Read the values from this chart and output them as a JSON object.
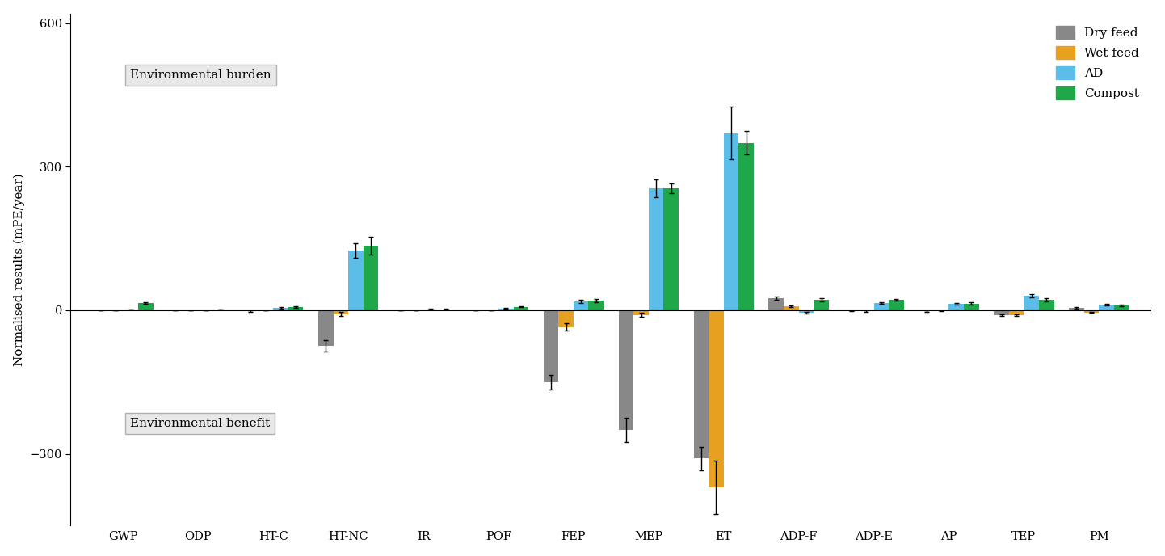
{
  "categories": [
    "GWP",
    "ODP",
    "HT-C",
    "HT-NC",
    "IR",
    "POF",
    "FEP",
    "MEP",
    "ET",
    "ADP-F",
    "ADP-E",
    "AP",
    "TEP",
    "PM"
  ],
  "series": {
    "Dry feed": [
      0,
      0,
      -2,
      -75,
      0,
      0,
      -150,
      -250,
      -310,
      25,
      -1,
      -2,
      -10,
      5
    ],
    "Wet feed": [
      0,
      0,
      0,
      -8,
      0,
      0,
      -35,
      -10,
      -370,
      8,
      -2,
      -1,
      -10,
      -5
    ],
    "AD": [
      1,
      0,
      5,
      125,
      2,
      4,
      18,
      255,
      370,
      -5,
      15,
      13,
      30,
      12
    ],
    "Compost": [
      15,
      1,
      7,
      135,
      2,
      7,
      20,
      255,
      350,
      22,
      22,
      14,
      22,
      10
    ]
  },
  "errors": {
    "Dry feed": [
      0.5,
      0.05,
      1,
      12,
      0.3,
      0.5,
      15,
      25,
      25,
      4,
      1,
      1,
      2,
      1.5
    ],
    "Wet feed": [
      0.3,
      0.05,
      0.3,
      4,
      0.2,
      0.3,
      8,
      4,
      55,
      2,
      1,
      1,
      2,
      1
    ],
    "AD": [
      0.3,
      0.05,
      1,
      15,
      0.5,
      1,
      3,
      18,
      55,
      2,
      2,
      2,
      4,
      2
    ],
    "Compost": [
      1.5,
      0.2,
      1.5,
      18,
      0.5,
      1,
      3,
      10,
      25,
      3,
      2,
      2,
      3,
      2
    ]
  },
  "colors": {
    "Dry feed": "#888888",
    "Wet feed": "#E8A020",
    "AD": "#5BBDE8",
    "Compost": "#1FA84A"
  },
  "ylabel": "Normalised results (mPE/year)",
  "ylim": [
    -450,
    620
  ],
  "yticks": [
    -300,
    0,
    300,
    600
  ],
  "background_color": "#ffffff",
  "env_burden_text": "Environmental burden",
  "env_benefit_text": "Environmental benefit"
}
